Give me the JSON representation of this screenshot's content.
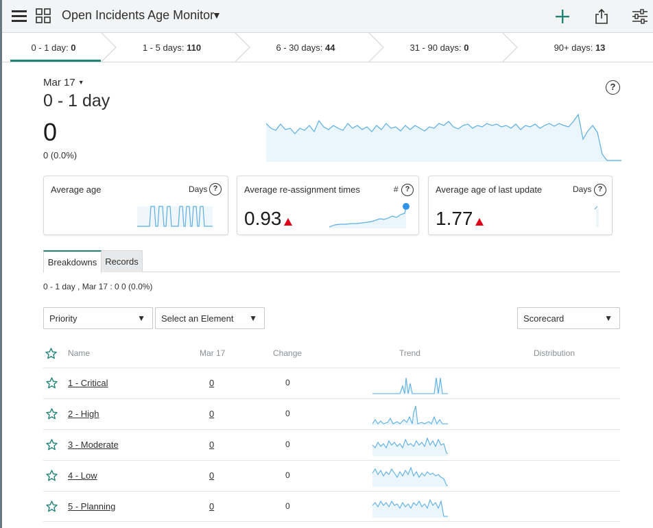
{
  "header": {
    "title": "Open Incidents Age Monitor",
    "icons": [
      "hamburger-menu-icon",
      "dashboard-grid-icon",
      "caret-down-icon",
      "plus-icon",
      "share-icon",
      "filter-sliders-icon"
    ],
    "accent_color": "#1f8476"
  },
  "steps": [
    {
      "label": "0 - 1 day:",
      "count": "0",
      "active": true
    },
    {
      "label": "1 - 5 days:",
      "count": "110",
      "active": false
    },
    {
      "label": "6 - 30 days:",
      "count": "44",
      "active": false
    },
    {
      "label": "31 - 90 days:",
      "count": "0",
      "active": false
    },
    {
      "label": "90+ days:",
      "count": "13",
      "active": false
    }
  ],
  "summary_panel": {
    "date": "Mar 17",
    "title": "0 - 1 day",
    "value": "0",
    "sub": "0 (0.0%)",
    "help": "?"
  },
  "cards": [
    {
      "title": "Average age",
      "unit": "Days",
      "value": "",
      "help": "?"
    },
    {
      "title": "Average re-assignment times",
      "unit": "#",
      "value": "0.93",
      "help": "?",
      "trend": "up"
    },
    {
      "title": "Average age of last update",
      "unit": "Days",
      "value": "1.77",
      "help": "?",
      "trend": "up"
    }
  ],
  "tabs": [
    "Breakdowns",
    "Records"
  ],
  "breakdown_summary": "0 - 1 day , Mar 17 : 0 0 (0.0%)",
  "filters": {
    "breakdown": "Priority",
    "element": "Select an Element",
    "view": "Scorecard"
  },
  "table": {
    "headers": {
      "name": "Name",
      "date": "Mar 17",
      "change": "Change",
      "trend": "Trend",
      "distribution": "Distribution"
    },
    "rows": [
      {
        "name": "1 - Critical",
        "value": "0",
        "change": "0"
      },
      {
        "name": "2 - High",
        "value": "0",
        "change": "0"
      },
      {
        "name": "3 - Moderate",
        "value": "0",
        "change": "0"
      },
      {
        "name": "4 - Low",
        "value": "0",
        "change": "0"
      },
      {
        "name": "5 - Planning",
        "value": "0",
        "change": "0"
      }
    ]
  },
  "colors": {
    "spark": "#5aaee3",
    "spark_fill": "#eaf5fc",
    "trend_up": "#e0001a",
    "dot": "#2f95e8"
  }
}
